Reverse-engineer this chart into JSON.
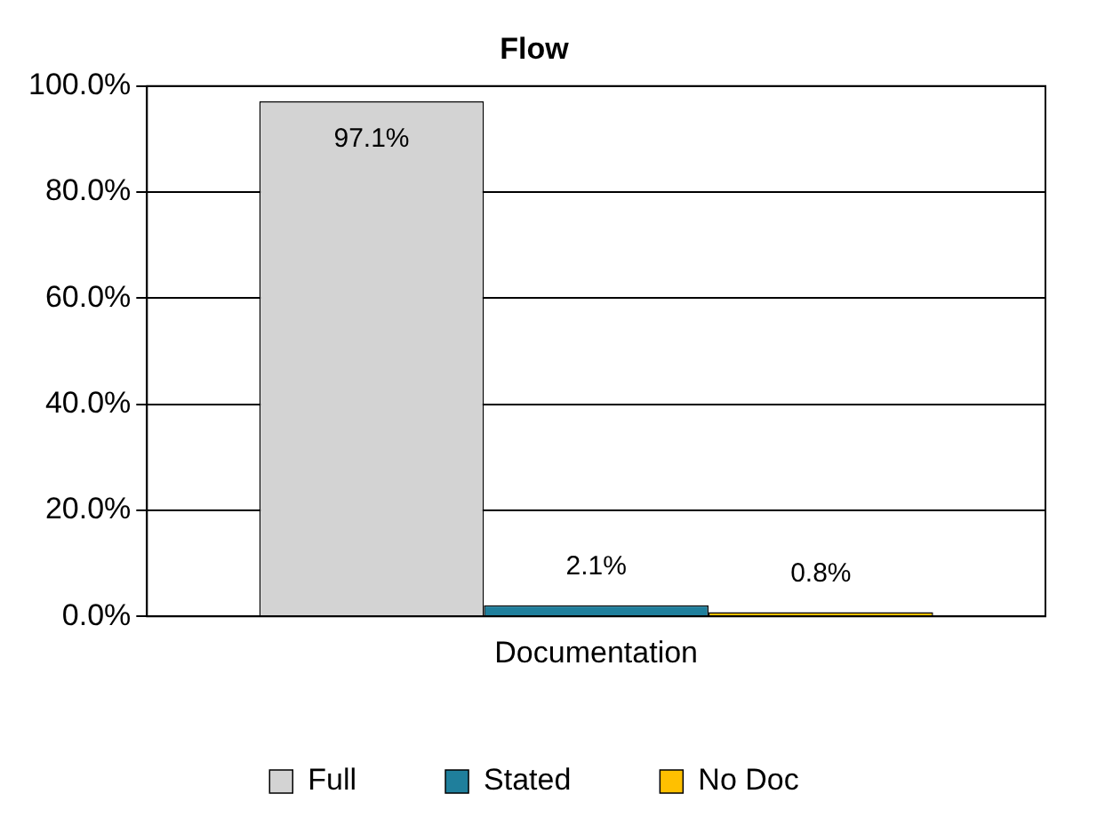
{
  "chart_data": {
    "type": "bar",
    "title": "Flow",
    "categories": [
      "Documentation"
    ],
    "series": [
      {
        "name": "Full",
        "color": "#d3d3d3",
        "values": [
          97.1
        ],
        "value_labels": [
          "97.1%"
        ]
      },
      {
        "name": "Stated",
        "color": "#1f7f9c",
        "values": [
          2.1
        ],
        "value_labels": [
          "2.1%"
        ]
      },
      {
        "name": "No Doc",
        "color": "#ffc000",
        "values": [
          0.8
        ],
        "value_labels": [
          "0.8%"
        ]
      }
    ],
    "ylim": [
      0,
      100
    ],
    "yticks": [
      {
        "value": 0,
        "label": "0.0%"
      },
      {
        "value": 20,
        "label": "20.0%"
      },
      {
        "value": 40,
        "label": "40.0%"
      },
      {
        "value": 60,
        "label": "60.0%"
      },
      {
        "value": 80,
        "label": "80.0%"
      },
      {
        "value": 100,
        "label": "100.0%"
      }
    ],
    "grid": "y",
    "legend": "bottom"
  }
}
